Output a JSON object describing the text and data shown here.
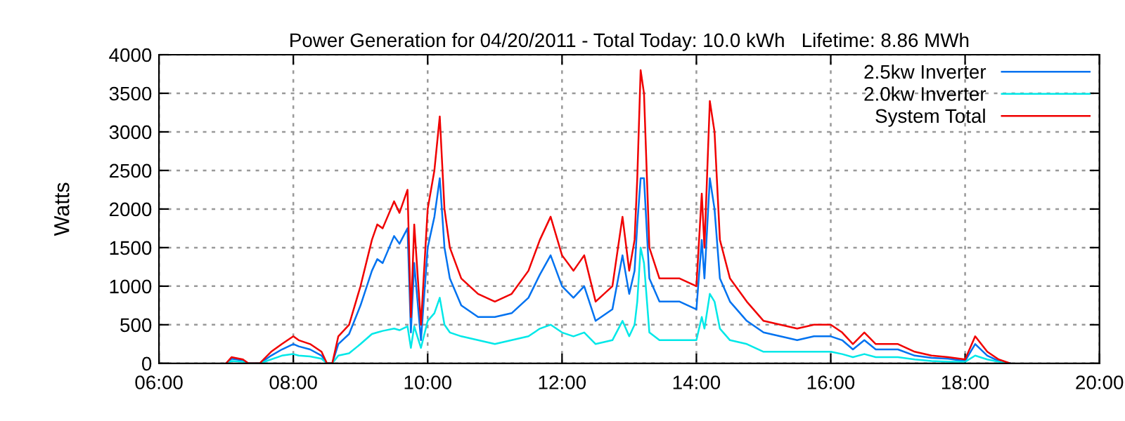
{
  "chart_data": {
    "type": "line",
    "title": "Power Generation for 04/20/2011 - Total Today: 10.0 kWh   Lifetime: 8.86 MWh",
    "ylabel": "Watts",
    "x": [
      7.0,
      7.08,
      7.25,
      7.33,
      7.5,
      7.67,
      7.83,
      8.0,
      8.08,
      8.25,
      8.42,
      8.5,
      8.58,
      8.67,
      8.83,
      9.0,
      9.17,
      9.25,
      9.33,
      9.5,
      9.58,
      9.7,
      9.75,
      9.8,
      9.9,
      10.0,
      10.1,
      10.18,
      10.25,
      10.33,
      10.5,
      10.75,
      11.0,
      11.25,
      11.5,
      11.67,
      11.83,
      12.0,
      12.17,
      12.33,
      12.5,
      12.75,
      12.9,
      13.0,
      13.08,
      13.12,
      13.17,
      13.22,
      13.3,
      13.45,
      13.75,
      14.0,
      14.08,
      14.12,
      14.2,
      14.27,
      14.35,
      14.5,
      14.75,
      15.0,
      15.25,
      15.5,
      15.75,
      16.0,
      16.17,
      16.33,
      16.5,
      16.67,
      17.0,
      17.25,
      17.5,
      17.75,
      18.0,
      18.15,
      18.33,
      18.5,
      18.67
    ],
    "series": [
      {
        "name": "2.5kw Inverter",
        "color": "#0072f0",
        "values": [
          0,
          60,
          40,
          0,
          0,
          100,
          180,
          250,
          220,
          180,
          100,
          0,
          0,
          250,
          380,
          750,
          1200,
          1350,
          1300,
          1650,
          1550,
          1750,
          400,
          1300,
          300,
          1500,
          1900,
          2400,
          1500,
          1100,
          750,
          600,
          600,
          650,
          850,
          1150,
          1400,
          1000,
          850,
          1000,
          550,
          700,
          1400,
          900,
          1200,
          1800,
          2400,
          2400,
          1100,
          800,
          800,
          700,
          1600,
          1100,
          2400,
          2000,
          1100,
          800,
          550,
          400,
          350,
          300,
          350,
          350,
          300,
          180,
          300,
          180,
          180,
          100,
          70,
          60,
          30,
          250,
          100,
          30,
          0
        ]
      },
      {
        "name": "2.0kw Inverter",
        "color": "#00e8e8",
        "values": [
          0,
          30,
          20,
          0,
          0,
          50,
          100,
          120,
          100,
          90,
          60,
          0,
          0,
          100,
          130,
          250,
          380,
          400,
          420,
          450,
          430,
          480,
          200,
          480,
          200,
          550,
          650,
          850,
          500,
          400,
          350,
          300,
          250,
          300,
          350,
          450,
          500,
          400,
          350,
          400,
          250,
          300,
          550,
          350,
          500,
          800,
          1500,
          1300,
          400,
          300,
          300,
          300,
          600,
          450,
          900,
          800,
          450,
          300,
          250,
          150,
          150,
          150,
          150,
          150,
          120,
          80,
          120,
          80,
          80,
          50,
          30,
          20,
          20,
          100,
          50,
          20,
          0
        ]
      },
      {
        "name": "System Total",
        "color": "#f00000",
        "values": [
          0,
          80,
          50,
          0,
          0,
          150,
          250,
          350,
          300,
          250,
          150,
          0,
          0,
          350,
          500,
          1000,
          1600,
          1800,
          1750,
          2100,
          1950,
          2250,
          600,
          1800,
          500,
          2000,
          2500,
          3200,
          2000,
          1500,
          1100,
          900,
          800,
          900,
          1200,
          1600,
          1900,
          1400,
          1200,
          1400,
          800,
          1000,
          1900,
          1200,
          1600,
          2400,
          3800,
          3500,
          1500,
          1100,
          1100,
          1000,
          2200,
          1500,
          3400,
          3000,
          1600,
          1100,
          800,
          550,
          500,
          450,
          500,
          500,
          400,
          250,
          400,
          250,
          250,
          150,
          100,
          80,
          50,
          350,
          150,
          50,
          0
        ]
      }
    ],
    "xlim": [
      6,
      20
    ],
    "xticks": [
      {
        "value": 6,
        "label": "06:00"
      },
      {
        "value": 8,
        "label": "08:00"
      },
      {
        "value": 10,
        "label": "10:00"
      },
      {
        "value": 12,
        "label": "12:00"
      },
      {
        "value": 14,
        "label": "14:00"
      },
      {
        "value": 16,
        "label": "16:00"
      },
      {
        "value": 18,
        "label": "18:00"
      },
      {
        "value": 20,
        "label": "20:00"
      }
    ],
    "ylim": [
      0,
      4000
    ],
    "yticks": [
      0,
      500,
      1000,
      1500,
      2000,
      2500,
      3000,
      3500,
      4000
    ],
    "grid": true,
    "legend": "top right",
    "marker": "none",
    "line_style": "solid"
  }
}
